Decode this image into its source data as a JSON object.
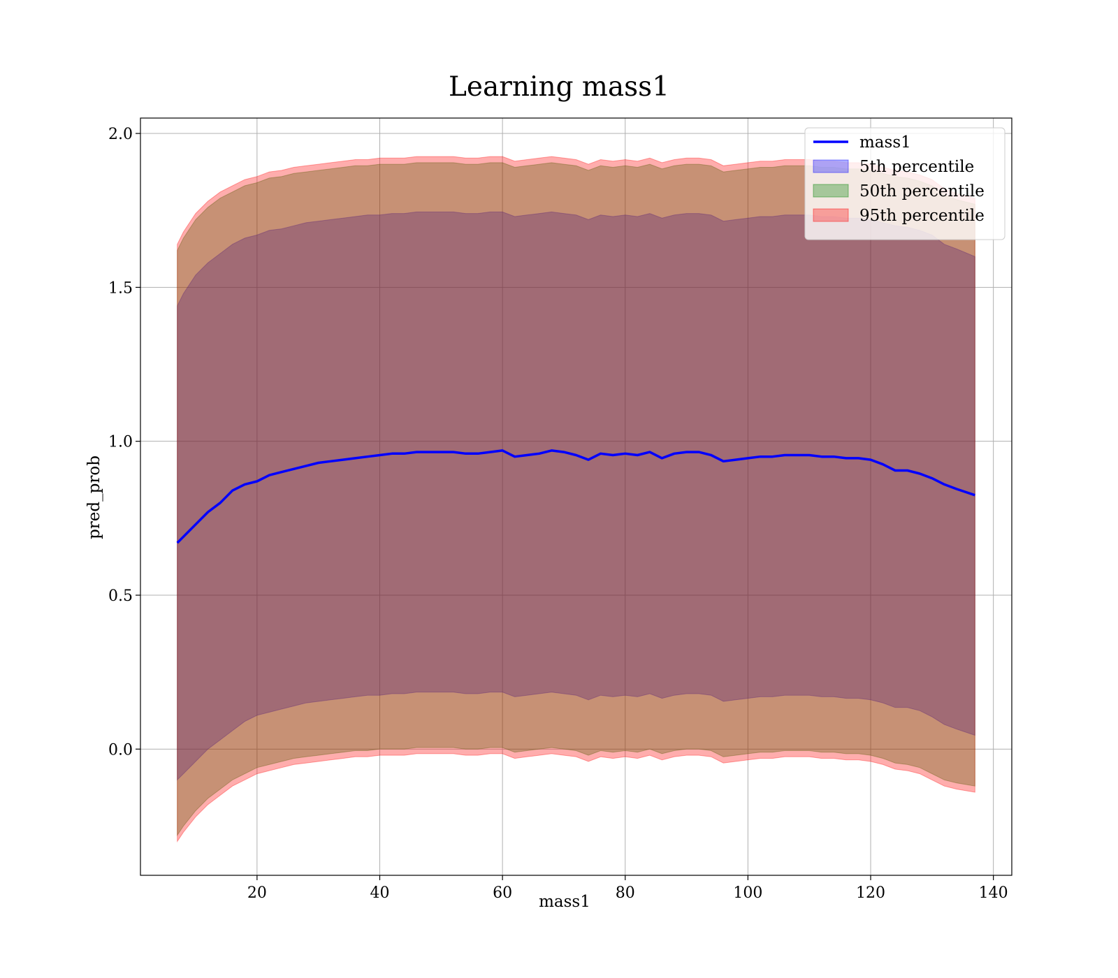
{
  "chart_data": {
    "type": "area",
    "title": "Learning mass1",
    "xlabel": "mass1",
    "ylabel": "pred_prob",
    "xlim": [
      1,
      143
    ],
    "ylim": [
      -0.41,
      2.05
    ],
    "xticks": [
      20,
      40,
      60,
      80,
      100,
      120,
      140
    ],
    "yticks": [
      0.0,
      0.5,
      1.0,
      1.5,
      2.0
    ],
    "ytick_labels": [
      "0.0",
      "0.5",
      "1.0",
      "1.5",
      "2.0"
    ],
    "grid": true,
    "legend_position": "top-right",
    "x": [
      7,
      8,
      10,
      12,
      14,
      16,
      18,
      20,
      22,
      24,
      26,
      28,
      30,
      32,
      34,
      36,
      38,
      40,
      42,
      44,
      46,
      48,
      50,
      52,
      54,
      56,
      58,
      60,
      62,
      64,
      66,
      68,
      70,
      72,
      74,
      76,
      78,
      80,
      82,
      84,
      86,
      88,
      90,
      92,
      94,
      96,
      98,
      100,
      102,
      104,
      106,
      108,
      110,
      112,
      114,
      116,
      118,
      120,
      122,
      124,
      126,
      128,
      130,
      132,
      134,
      137
    ],
    "series": [
      {
        "name": "mass1",
        "kind": "line",
        "color": "#0000ff",
        "values": [
          0.67,
          0.69,
          0.73,
          0.77,
          0.8,
          0.84,
          0.86,
          0.87,
          0.89,
          0.9,
          0.91,
          0.92,
          0.93,
          0.935,
          0.94,
          0.945,
          0.95,
          0.955,
          0.96,
          0.96,
          0.965,
          0.965,
          0.965,
          0.965,
          0.96,
          0.96,
          0.965,
          0.97,
          0.95,
          0.955,
          0.96,
          0.97,
          0.965,
          0.955,
          0.94,
          0.96,
          0.955,
          0.96,
          0.955,
          0.965,
          0.945,
          0.96,
          0.965,
          0.965,
          0.955,
          0.935,
          0.94,
          0.945,
          0.95,
          0.95,
          0.955,
          0.955,
          0.955,
          0.95,
          0.95,
          0.945,
          0.945,
          0.94,
          0.925,
          0.905,
          0.905,
          0.895,
          0.88,
          0.86,
          0.845,
          0.825
        ]
      },
      {
        "name": "5th percentile",
        "kind": "band",
        "color": "#0000ff",
        "upper": [
          1.44,
          1.48,
          1.54,
          1.58,
          1.61,
          1.64,
          1.66,
          1.67,
          1.685,
          1.69,
          1.7,
          1.71,
          1.715,
          1.72,
          1.725,
          1.73,
          1.735,
          1.735,
          1.74,
          1.74,
          1.745,
          1.745,
          1.745,
          1.745,
          1.74,
          1.74,
          1.745,
          1.745,
          1.73,
          1.735,
          1.74,
          1.745,
          1.74,
          1.735,
          1.72,
          1.735,
          1.73,
          1.735,
          1.73,
          1.74,
          1.725,
          1.735,
          1.74,
          1.74,
          1.735,
          1.715,
          1.72,
          1.725,
          1.73,
          1.73,
          1.735,
          1.735,
          1.735,
          1.73,
          1.73,
          1.725,
          1.725,
          1.72,
          1.71,
          1.7,
          1.695,
          1.685,
          1.67,
          1.64,
          1.625,
          1.6
        ],
        "lower": [
          -0.1,
          -0.08,
          -0.04,
          0.0,
          0.03,
          0.06,
          0.09,
          0.11,
          0.12,
          0.13,
          0.14,
          0.15,
          0.155,
          0.16,
          0.165,
          0.17,
          0.175,
          0.175,
          0.18,
          0.18,
          0.185,
          0.185,
          0.185,
          0.185,
          0.18,
          0.18,
          0.185,
          0.185,
          0.17,
          0.175,
          0.18,
          0.185,
          0.18,
          0.175,
          0.16,
          0.175,
          0.17,
          0.175,
          0.17,
          0.18,
          0.165,
          0.175,
          0.18,
          0.18,
          0.175,
          0.155,
          0.16,
          0.165,
          0.17,
          0.17,
          0.175,
          0.175,
          0.175,
          0.17,
          0.17,
          0.165,
          0.165,
          0.16,
          0.15,
          0.135,
          0.135,
          0.125,
          0.105,
          0.08,
          0.065,
          0.045
        ]
      },
      {
        "name": "50th percentile",
        "kind": "band",
        "color": "#008000",
        "upper": [
          1.62,
          1.66,
          1.72,
          1.76,
          1.79,
          1.81,
          1.83,
          1.84,
          1.855,
          1.86,
          1.87,
          1.875,
          1.88,
          1.885,
          1.89,
          1.895,
          1.895,
          1.9,
          1.9,
          1.9,
          1.905,
          1.905,
          1.905,
          1.905,
          1.9,
          1.9,
          1.905,
          1.905,
          1.89,
          1.895,
          1.9,
          1.905,
          1.9,
          1.895,
          1.88,
          1.895,
          1.89,
          1.895,
          1.89,
          1.9,
          1.885,
          1.895,
          1.9,
          1.9,
          1.895,
          1.875,
          1.88,
          1.885,
          1.89,
          1.89,
          1.895,
          1.895,
          1.895,
          1.89,
          1.89,
          1.885,
          1.885,
          1.88,
          1.87,
          1.86,
          1.855,
          1.845,
          1.83,
          1.8,
          1.785,
          1.77
        ],
        "lower": [
          -0.28,
          -0.25,
          -0.2,
          -0.16,
          -0.13,
          -0.1,
          -0.08,
          -0.06,
          -0.05,
          -0.04,
          -0.03,
          -0.025,
          -0.02,
          -0.015,
          -0.01,
          -0.005,
          -0.005,
          0.0,
          0.0,
          0.0,
          0.005,
          0.005,
          0.005,
          0.005,
          0.0,
          0.0,
          0.005,
          0.005,
          -0.01,
          -0.005,
          0.0,
          0.005,
          0.0,
          -0.005,
          -0.02,
          -0.005,
          -0.01,
          -0.005,
          -0.01,
          0.0,
          -0.015,
          -0.005,
          0.0,
          0.0,
          -0.005,
          -0.025,
          -0.02,
          -0.015,
          -0.01,
          -0.01,
          -0.005,
          -0.005,
          -0.005,
          -0.01,
          -0.01,
          -0.015,
          -0.015,
          -0.02,
          -0.03,
          -0.045,
          -0.05,
          -0.06,
          -0.08,
          -0.1,
          -0.11,
          -0.12
        ]
      },
      {
        "name": "95th percentile",
        "kind": "band",
        "color": "#ff0000",
        "upper": [
          1.64,
          1.68,
          1.74,
          1.78,
          1.81,
          1.83,
          1.85,
          1.86,
          1.875,
          1.88,
          1.89,
          1.895,
          1.9,
          1.905,
          1.91,
          1.915,
          1.915,
          1.92,
          1.92,
          1.92,
          1.925,
          1.925,
          1.925,
          1.925,
          1.92,
          1.92,
          1.925,
          1.925,
          1.91,
          1.915,
          1.92,
          1.925,
          1.92,
          1.915,
          1.9,
          1.915,
          1.91,
          1.915,
          1.91,
          1.92,
          1.905,
          1.915,
          1.92,
          1.92,
          1.915,
          1.895,
          1.9,
          1.905,
          1.91,
          1.91,
          1.915,
          1.915,
          1.915,
          1.91,
          1.91,
          1.905,
          1.905,
          1.9,
          1.89,
          1.88,
          1.875,
          1.865,
          1.85,
          1.82,
          1.805,
          1.79
        ],
        "lower": [
          -0.3,
          -0.27,
          -0.22,
          -0.18,
          -0.15,
          -0.12,
          -0.1,
          -0.08,
          -0.07,
          -0.06,
          -0.05,
          -0.045,
          -0.04,
          -0.035,
          -0.03,
          -0.025,
          -0.025,
          -0.02,
          -0.02,
          -0.02,
          -0.015,
          -0.015,
          -0.015,
          -0.015,
          -0.02,
          -0.02,
          -0.015,
          -0.015,
          -0.03,
          -0.025,
          -0.02,
          -0.015,
          -0.02,
          -0.025,
          -0.04,
          -0.025,
          -0.03,
          -0.025,
          -0.03,
          -0.02,
          -0.035,
          -0.025,
          -0.02,
          -0.02,
          -0.025,
          -0.045,
          -0.04,
          -0.035,
          -0.03,
          -0.03,
          -0.025,
          -0.025,
          -0.025,
          -0.03,
          -0.03,
          -0.035,
          -0.035,
          -0.04,
          -0.05,
          -0.065,
          -0.07,
          -0.08,
          -0.1,
          -0.12,
          -0.13,
          -0.14
        ]
      }
    ]
  }
}
